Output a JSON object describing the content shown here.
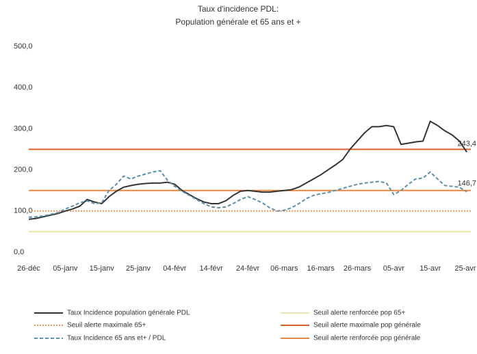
{
  "chart_data": {
    "type": "line",
    "title": [
      "Taux d'incidence PDL:",
      "Population générale et 65 ans et +"
    ],
    "categories": [
      "26-déc",
      null,
      null,
      null,
      null,
      "05-janv",
      null,
      null,
      null,
      null,
      "15-janv",
      null,
      null,
      null,
      null,
      "25-janv",
      null,
      null,
      null,
      null,
      "04-févr",
      null,
      null,
      null,
      null,
      "14-févr",
      null,
      null,
      null,
      null,
      "24-févr",
      null,
      null,
      null,
      null,
      "06-mars",
      null,
      null,
      null,
      null,
      "16-mars",
      null,
      null,
      null,
      null,
      "26-mars",
      null,
      null,
      null,
      null,
      "05-avr",
      null,
      null,
      null,
      null,
      "15-avr",
      null,
      null,
      null,
      null,
      "25-avr"
    ],
    "ylim": [
      0,
      500
    ],
    "yticks": [
      {
        "value": 0,
        "label": "0,0"
      },
      {
        "value": 100,
        "label": "100,0"
      },
      {
        "value": 200,
        "label": "200,0"
      },
      {
        "value": 300,
        "label": "300,0"
      },
      {
        "value": 400,
        "label": "400,0"
      },
      {
        "value": 500,
        "label": "500,0"
      }
    ],
    "series": [
      {
        "name": "Taux Incidence population générale PDL",
        "color": "#333333",
        "dash": "solid",
        "values": [
          80,
          82,
          86,
          90,
          94,
          100,
          105,
          112,
          128,
          122,
          118,
          135,
          148,
          158,
          162,
          165,
          167,
          168,
          168,
          170,
          165,
          150,
          140,
          130,
          122,
          118,
          118,
          125,
          138,
          148,
          150,
          148,
          146,
          146,
          148,
          150,
          152,
          158,
          168,
          178,
          188,
          200,
          212,
          225,
          250,
          270,
          290,
          305,
          305,
          308,
          305,
          262,
          265,
          268,
          270,
          318,
          308,
          295,
          285,
          270,
          243.4
        ],
        "value_labels": [
          null,
          null,
          null,
          null,
          null,
          null,
          null,
          null,
          null,
          null,
          null,
          null,
          null,
          null,
          null,
          null,
          null,
          null,
          null,
          null,
          null,
          null,
          null,
          null,
          null,
          null,
          null,
          null,
          null,
          null,
          null,
          null,
          null,
          null,
          null,
          null,
          null,
          null,
          null,
          null,
          null,
          null,
          null,
          null,
          null,
          null,
          null,
          null,
          null,
          null,
          null,
          null,
          null,
          null,
          null,
          null,
          null,
          null,
          null,
          null,
          "243,4"
        ]
      },
      {
        "name": "Taux Incidence 65 ans et+ / PDL",
        "color": "#5b8fa8",
        "dash": "dashed",
        "values": [
          85,
          86,
          88,
          92,
          96,
          105,
          112,
          120,
          125,
          118,
          120,
          150,
          165,
          185,
          178,
          185,
          190,
          195,
          198,
          175,
          160,
          148,
          138,
          128,
          118,
          110,
          108,
          110,
          118,
          128,
          135,
          128,
          120,
          108,
          100,
          102,
          108,
          118,
          130,
          138,
          142,
          145,
          150,
          155,
          160,
          165,
          168,
          170,
          172,
          168,
          140,
          150,
          165,
          178,
          180,
          195,
          178,
          162,
          160,
          158,
          146.7
        ],
        "value_labels": [
          null,
          null,
          null,
          null,
          null,
          null,
          null,
          null,
          null,
          null,
          null,
          null,
          null,
          null,
          null,
          null,
          null,
          null,
          null,
          null,
          null,
          null,
          null,
          null,
          null,
          null,
          null,
          null,
          null,
          null,
          null,
          null,
          null,
          null,
          null,
          null,
          null,
          null,
          null,
          null,
          null,
          null,
          null,
          null,
          null,
          null,
          null,
          null,
          null,
          null,
          null,
          null,
          null,
          null,
          null,
          null,
          null,
          null,
          null,
          null,
          "146,7"
        ]
      }
    ],
    "thresholds": [
      {
        "name": "Seuil alerte renforcée pop 65+",
        "value": 50,
        "color": "#ece6b0",
        "dash": "solid"
      },
      {
        "name": "Seuil alerte maximale 65+",
        "value": 100,
        "color": "#e8955a",
        "dash": "dotted"
      },
      {
        "name": "Seuil alerte maximale pop générale",
        "value": 250,
        "color": "#d9622b",
        "dash": "solid"
      },
      {
        "name": "Seuil alerte renforcée pop générale",
        "value": 150,
        "color": "#e8863f",
        "dash": "solid"
      }
    ]
  }
}
